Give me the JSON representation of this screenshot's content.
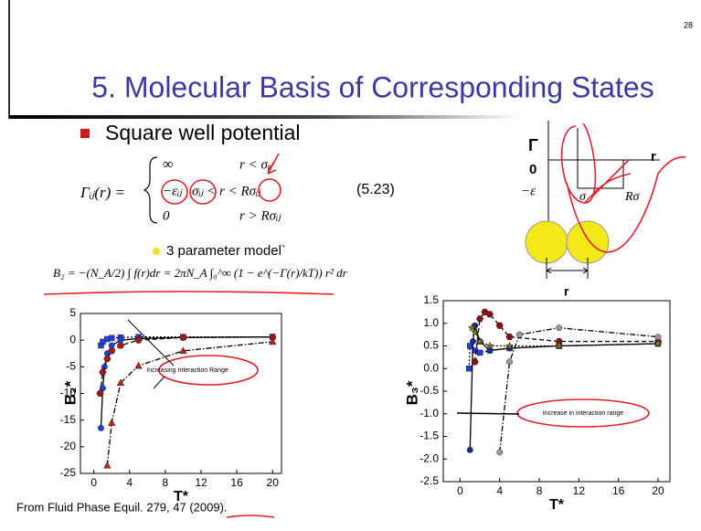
{
  "page_number": "28",
  "title": "5. Molecular Basis of Corresponding States",
  "bullet": "Square well potential",
  "equation": {
    "lhs": "Γᵢⱼ(r) =",
    "rows": [
      [
        "∞",
        "r < σᵢⱼ"
      ],
      [
        "−εᵢⱼ",
        "σᵢⱼ < r < Rσᵢⱼ"
      ],
      [
        "0",
        "r > Rσᵢⱼ"
      ]
    ]
  },
  "equation_number": "(5.23)",
  "model_note": "3 parameter model`",
  "b2_equation": "B₂ = −(N_A/2) ∫ f(r)dr = 2πN_A ∫₀^∞ (1 − e^(−Γ(r)/kT)) r² dr",
  "diagram": {
    "y_axis": "Γ",
    "x_axis": "r",
    "zero": "0",
    "well_depth": "−ε",
    "sigma": "σ",
    "r_sigma": "Rσ",
    "distance": "r"
  },
  "source": "From  Fluid Phase Equil. 279, 47 (2009).",
  "chart_data": [
    {
      "type": "line",
      "x_label": "T*",
      "y_label": "B₂*",
      "annotation": "Increasing Interaction Range",
      "xlim": [
        -1.5,
        21
      ],
      "xticks": [
        0,
        4,
        8,
        12,
        16,
        20
      ],
      "ylim": [
        -25,
        5
      ],
      "yticks": [
        -25,
        -20,
        -15,
        -10,
        -5,
        0,
        5
      ],
      "series": [
        {
          "color": "#1f3fe0",
          "marker": "square",
          "dash": "dotted",
          "x": [
            0.8,
            1,
            1.5,
            2,
            3,
            5,
            10,
            20
          ],
          "values": [
            -1,
            -0.3,
            0.2,
            0.4,
            0.5,
            0.6,
            0.6,
            0.6
          ]
        },
        {
          "color": "#1f3fe0",
          "marker": "circle",
          "dash": "solid",
          "x": [
            0.8,
            1,
            1.2,
            1.5,
            2,
            3,
            5,
            10,
            20
          ],
          "values": [
            -16.5,
            -9,
            -5,
            -2.5,
            -1,
            0,
            0.3,
            0.5,
            0.6
          ]
        },
        {
          "color": "#a01818",
          "marker": "hexagon",
          "dash": "dashed",
          "x": [
            0.7,
            1,
            1.5,
            2,
            3,
            5,
            10,
            20
          ],
          "values": [
            -10,
            -6,
            -3.5,
            -2,
            -1,
            0,
            0.5,
            0.6
          ]
        },
        {
          "color": "#c02020",
          "marker": "triangle",
          "dash": "dashdot",
          "x": [
            1.5,
            2,
            3,
            5,
            10,
            20
          ],
          "values": [
            -23.5,
            -15.5,
            -8,
            -4.8,
            -2,
            -0.3
          ]
        }
      ]
    },
    {
      "type": "line",
      "x_label": "T*",
      "y_label": "B₃*",
      "annotation": "Increase in interaction range",
      "xlim": [
        -1.7,
        21.2
      ],
      "xticks": [
        0,
        4,
        8,
        12,
        16,
        20
      ],
      "ylim": [
        -2.5,
        1.5
      ],
      "yticks": [
        1.5,
        {
          "value": 1,
          "label": "1.0"
        },
        0.5,
        {
          "value": 0,
          "label": "0.0"
        },
        -0.5,
        {
          "value": -1,
          "label": "-1.0"
        },
        -1.5,
        {
          "value": -2,
          "label": "-2.0"
        },
        -2.5
      ],
      "series": [
        {
          "color": "#1f3fe0",
          "marker": "square",
          "dash": "dotted",
          "x": [
            0.9,
            1,
            1.5,
            2,
            3,
            5,
            10,
            20
          ],
          "values": [
            0,
            0.5,
            0.4,
            0.35,
            0.4,
            0.45,
            0.5,
            0.55
          ]
        },
        {
          "color": "#1a2a90",
          "marker": "circle",
          "dash": "solid",
          "x": [
            1,
            1.3,
            1.5,
            2,
            3,
            5,
            10,
            20
          ],
          "values": [
            -1.8,
            0.6,
            0.95,
            0.6,
            0.4,
            0.45,
            0.5,
            0.55
          ]
        },
        {
          "color": "#8a1010",
          "marker": "hexagon",
          "dash": "dashed",
          "x": [
            1.5,
            2,
            2.5,
            3,
            4,
            5,
            10,
            20
          ],
          "values": [
            0.15,
            1.1,
            1.25,
            1.2,
            0.95,
            0.7,
            0.6,
            0.6
          ]
        },
        {
          "color": "#999999",
          "marker": "circle",
          "dash": "dashdot",
          "x": [
            4,
            5,
            6,
            10,
            20
          ],
          "values": [
            -1.85,
            0.15,
            0.75,
            0.9,
            0.7
          ]
        },
        {
          "color": "#7a7a10",
          "marker": "star",
          "dash": "dotted",
          "x": [
            1.2,
            1.5,
            2,
            3,
            5,
            10,
            20
          ],
          "values": [
            0.9,
            0.8,
            0.6,
            0.5,
            0.5,
            0.5,
            0.55
          ]
        }
      ]
    }
  ]
}
